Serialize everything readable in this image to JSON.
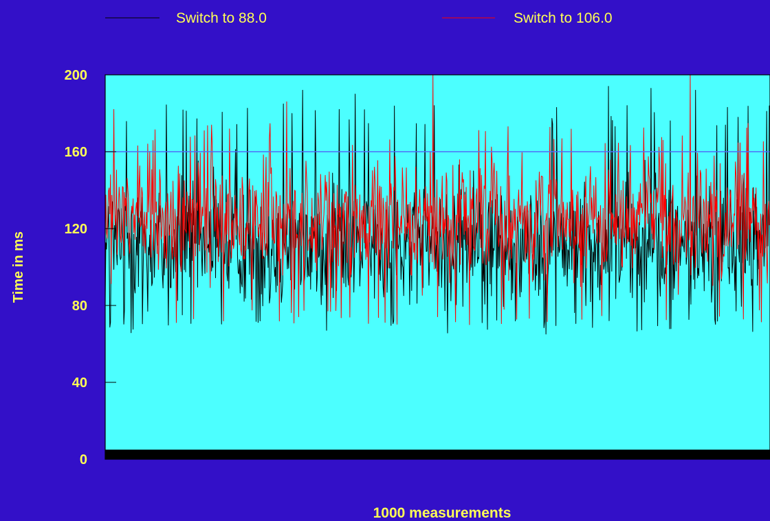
{
  "chart_data": {
    "type": "line",
    "title": "",
    "xlabel": "1000 measurements",
    "ylabel": "Time in ms",
    "xlim": [
      0,
      1000
    ],
    "ylim": [
      0,
      200
    ],
    "yticks": [
      "0",
      "40",
      "80",
      "120",
      "160",
      "200"
    ],
    "reference_line": {
      "y": 160,
      "color": "#4f6df7"
    },
    "legend_position": "top",
    "colors": {
      "background": "#3310c8",
      "plot_background": "#4cffff",
      "text": "#ffff55",
      "series_black": "#000000",
      "series_red": "#ff0000",
      "reference": "#4f6df7",
      "baseline": "#000000"
    },
    "series": [
      {
        "name": "Switch to 88.0",
        "color": "#000000",
        "n": 1000,
        "summary": {
          "typical_min": 65,
          "typical_max": 185,
          "mean": 112
        },
        "peaks": [
          {
            "x": 297,
            "y": 192
          },
          {
            "x": 376,
            "y": 190
          },
          {
            "x": 757,
            "y": 194
          },
          {
            "x": 821,
            "y": 193
          },
          {
            "x": 888,
            "y": 192
          },
          {
            "x": 1000,
            "y": 184
          }
        ]
      },
      {
        "name": "Switch to 106.0",
        "color": "#ff0000",
        "n": 1000,
        "summary": {
          "typical_min": 70,
          "typical_max": 175,
          "mean": 125
        },
        "peaks": [
          {
            "x": 493,
            "y": 200
          },
          {
            "x": 880,
            "y": 200
          },
          {
            "x": 273,
            "y": 186
          },
          {
            "x": 13,
            "y": 182
          }
        ]
      }
    ]
  }
}
